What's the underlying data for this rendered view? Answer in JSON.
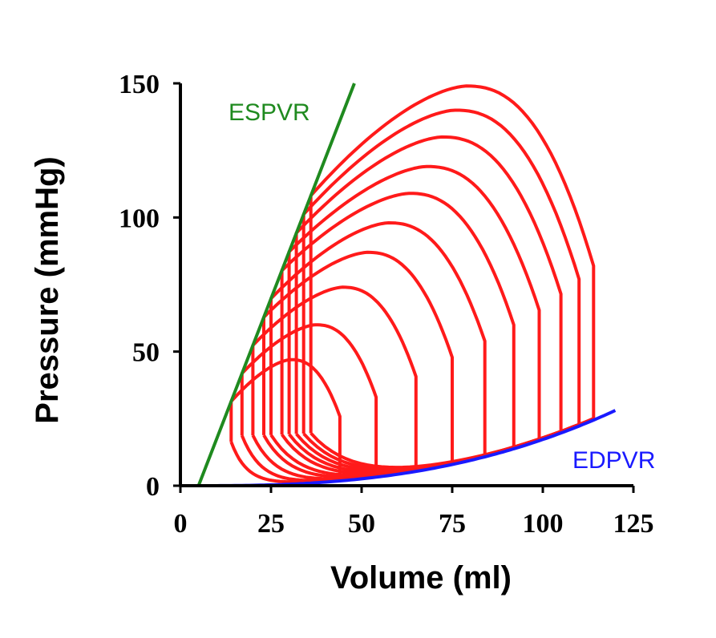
{
  "chart_data": {
    "type": "line",
    "title": "",
    "xlabel": "Volume (ml)",
    "ylabel": "Pressure (mmHg)",
    "xlim": [
      0,
      125
    ],
    "ylim": [
      0,
      150
    ],
    "x_ticks": [
      "0",
      "25",
      "50",
      "75",
      "100",
      "125"
    ],
    "y_ticks": [
      "0",
      "50",
      "100",
      "150"
    ],
    "colors": {
      "loops": "#ff1a1a",
      "espvr": "#1f8a1f",
      "edpvr": "#1a1aff",
      "axis": "#000000"
    },
    "espvr": {
      "label": "ESPVR",
      "x": [
        5,
        48
      ],
      "y": [
        0,
        150
      ]
    },
    "edpvr": {
      "label": "EDPVR",
      "v0": 5,
      "a": 0.000156,
      "exponent": 2.55,
      "x_end": 120
    },
    "loops": [
      {
        "esv": 14,
        "edv": 44,
        "peak_pressure": 47
      },
      {
        "esv": 17,
        "edv": 54,
        "peak_pressure": 60
      },
      {
        "esv": 20,
        "edv": 65,
        "peak_pressure": 74
      },
      {
        "esv": 23,
        "edv": 75,
        "peak_pressure": 87
      },
      {
        "esv": 25,
        "edv": 84,
        "peak_pressure": 98
      },
      {
        "esv": 28,
        "edv": 92,
        "peak_pressure": 109
      },
      {
        "esv": 30,
        "edv": 99,
        "peak_pressure": 119
      },
      {
        "esv": 32,
        "edv": 105,
        "peak_pressure": 130
      },
      {
        "esv": 34,
        "edv": 110,
        "peak_pressure": 140
      },
      {
        "esv": 36,
        "edv": 114,
        "peak_pressure": 149
      }
    ]
  }
}
